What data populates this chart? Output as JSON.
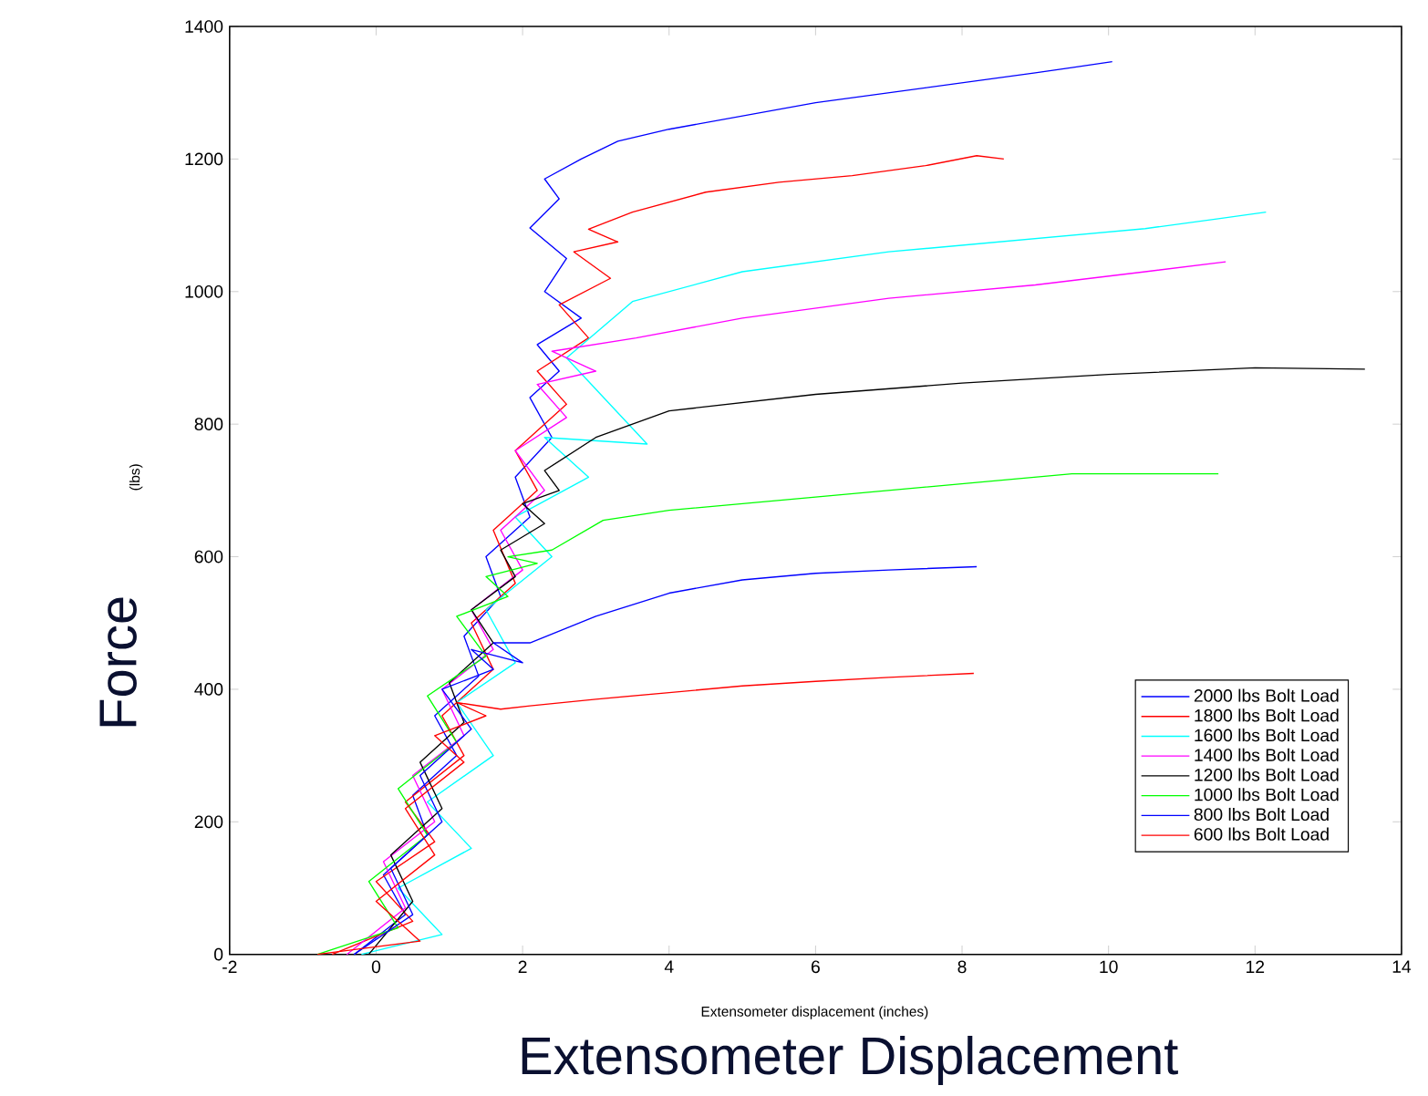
{
  "chart_data": {
    "type": "line",
    "xlabel": "Extensometer Displacement",
    "ylabel": "Force",
    "annotations": [
      "(lbs)",
      "Extensometer displacement (inches)"
    ],
    "xlim": [
      -2,
      14
    ],
    "ylim": [
      0,
      1400
    ],
    "xticks": [
      -2,
      0,
      2,
      4,
      6,
      8,
      10,
      12,
      14
    ],
    "yticks": [
      0,
      200,
      400,
      600,
      800,
      1000,
      1200,
      1400
    ],
    "legend": "bottom right",
    "grid": false,
    "marker": "none",
    "line_style": "solid",
    "series": [
      {
        "name": "2000 lbs Bolt Load",
        "color": "#0000ff",
        "x": [
          -0.3,
          0.4,
          0.1,
          0.7,
          0.5,
          1.1,
          0.8,
          1.4,
          1.2,
          1.7,
          1.5,
          2.1,
          1.9,
          2.4,
          2.1,
          2.5,
          2.2,
          2.8,
          2.3,
          2.6,
          2.1,
          2.5,
          2.3,
          2.8,
          3.3,
          4,
          5,
          6,
          7,
          8,
          9,
          9.5,
          10.05
        ],
        "values": [
          0,
          60,
          120,
          180,
          240,
          300,
          360,
          420,
          480,
          540,
          600,
          660,
          720,
          780,
          840,
          880,
          920,
          960,
          1000,
          1050,
          1096,
          1140,
          1170,
          1200,
          1227,
          1245,
          1265,
          1285,
          1300,
          1315,
          1330,
          1338,
          1347
        ]
      },
      {
        "name": "1800 lbs Bolt Load",
        "color": "#ff0000",
        "x": [
          -0.6,
          0.5,
          0,
          0.8,
          0.4,
          1.2,
          0.9,
          1.6,
          1.3,
          1.9,
          1.6,
          2.2,
          1.9,
          2.6,
          2.2,
          2.9,
          2.5,
          3.2,
          2.7,
          3.3,
          2.9,
          3.5,
          4.5,
          5.5,
          6.5,
          7.5,
          8.2,
          8.57
        ],
        "values": [
          0,
          50,
          110,
          170,
          230,
          300,
          360,
          430,
          500,
          560,
          640,
          700,
          760,
          830,
          880,
          930,
          980,
          1020,
          1060,
          1075,
          1094,
          1120,
          1150,
          1165,
          1175,
          1190,
          1205,
          1200
        ]
      },
      {
        "name": "1600 lbs Bolt Load",
        "color": "#00ffff",
        "x": [
          -0.2,
          0.9,
          0.3,
          1.3,
          0.7,
          1.6,
          1.1,
          1.9,
          1.5,
          2.4,
          1.9,
          2.9,
          2.3,
          3.7,
          2.6,
          3.5,
          5,
          7,
          9,
          10.5,
          11.5,
          12.15
        ],
        "values": [
          0,
          30,
          100,
          160,
          230,
          300,
          380,
          440,
          520,
          600,
          660,
          720,
          780,
          770,
          900,
          985,
          1030,
          1060,
          1080,
          1095,
          1110,
          1120
        ]
      },
      {
        "name": "1400 lbs Bolt Load",
        "color": "#ff00ff",
        "x": [
          -0.4,
          0.4,
          0.1,
          0.8,
          0.5,
          1.2,
          0.9,
          1.6,
          1.3,
          2.0,
          1.7,
          2.3,
          1.9,
          2.6,
          2.2,
          3,
          2.4,
          3.55,
          5,
          7,
          9,
          10.5,
          11.6
        ],
        "values": [
          0,
          70,
          140,
          200,
          270,
          330,
          400,
          460,
          520,
          580,
          640,
          700,
          760,
          810,
          860,
          880,
          910,
          930,
          960,
          990,
          1010,
          1030,
          1045
        ]
      },
      {
        "name": "1200 lbs Bolt Load",
        "color": "#000000",
        "x": [
          -0.1,
          0.5,
          0.2,
          0.9,
          0.6,
          1.2,
          1.0,
          1.6,
          1.3,
          1.9,
          1.7,
          2.3,
          2.0,
          2.5,
          2.3,
          3,
          4,
          6,
          8,
          10,
          12,
          13.5
        ],
        "values": [
          0,
          80,
          150,
          220,
          290,
          350,
          410,
          470,
          520,
          570,
          610,
          650,
          680,
          700,
          730,
          780,
          820,
          845,
          862,
          875,
          885,
          883
        ]
      },
      {
        "name": "1000 lbs Bolt Load",
        "color": "#00ff00",
        "x": [
          -0.8,
          0.3,
          -0.1,
          0.7,
          0.3,
          1.1,
          0.7,
          1.5,
          1.1,
          1.8,
          1.5,
          2.2,
          1.8,
          2.4,
          3.1,
          4,
          6,
          8,
          9.5,
          11.5
        ],
        "values": [
          0,
          40,
          110,
          180,
          250,
          320,
          390,
          450,
          510,
          540,
          570,
          590,
          600,
          610,
          655,
          670,
          690,
          710,
          725,
          725
        ]
      },
      {
        "name": "800 lbs Bolt Load",
        "color": "#0000ff",
        "x": [
          -0.3,
          0.5,
          0.2,
          0.9,
          0.6,
          1.3,
          0.9,
          1.6,
          1.3,
          2.0,
          1.6,
          2.1,
          3,
          4,
          5,
          6,
          7,
          8.2
        ],
        "values": [
          0,
          60,
          130,
          200,
          270,
          340,
          400,
          430,
          460,
          440,
          470,
          470,
          510,
          545,
          565,
          575,
          580,
          585
        ]
      },
      {
        "name": "600 lbs Bolt Load",
        "color": "#ff0000",
        "x": [
          -0.8,
          0.6,
          0,
          0.8,
          0.4,
          1.2,
          0.8,
          1.5,
          1.1,
          1.7,
          2.1,
          3,
          4,
          5,
          6,
          7,
          8.16
        ],
        "values": [
          0,
          20,
          80,
          150,
          220,
          290,
          330,
          360,
          380,
          370,
          375,
          385,
          395,
          405,
          412,
          418,
          424
        ]
      }
    ]
  }
}
